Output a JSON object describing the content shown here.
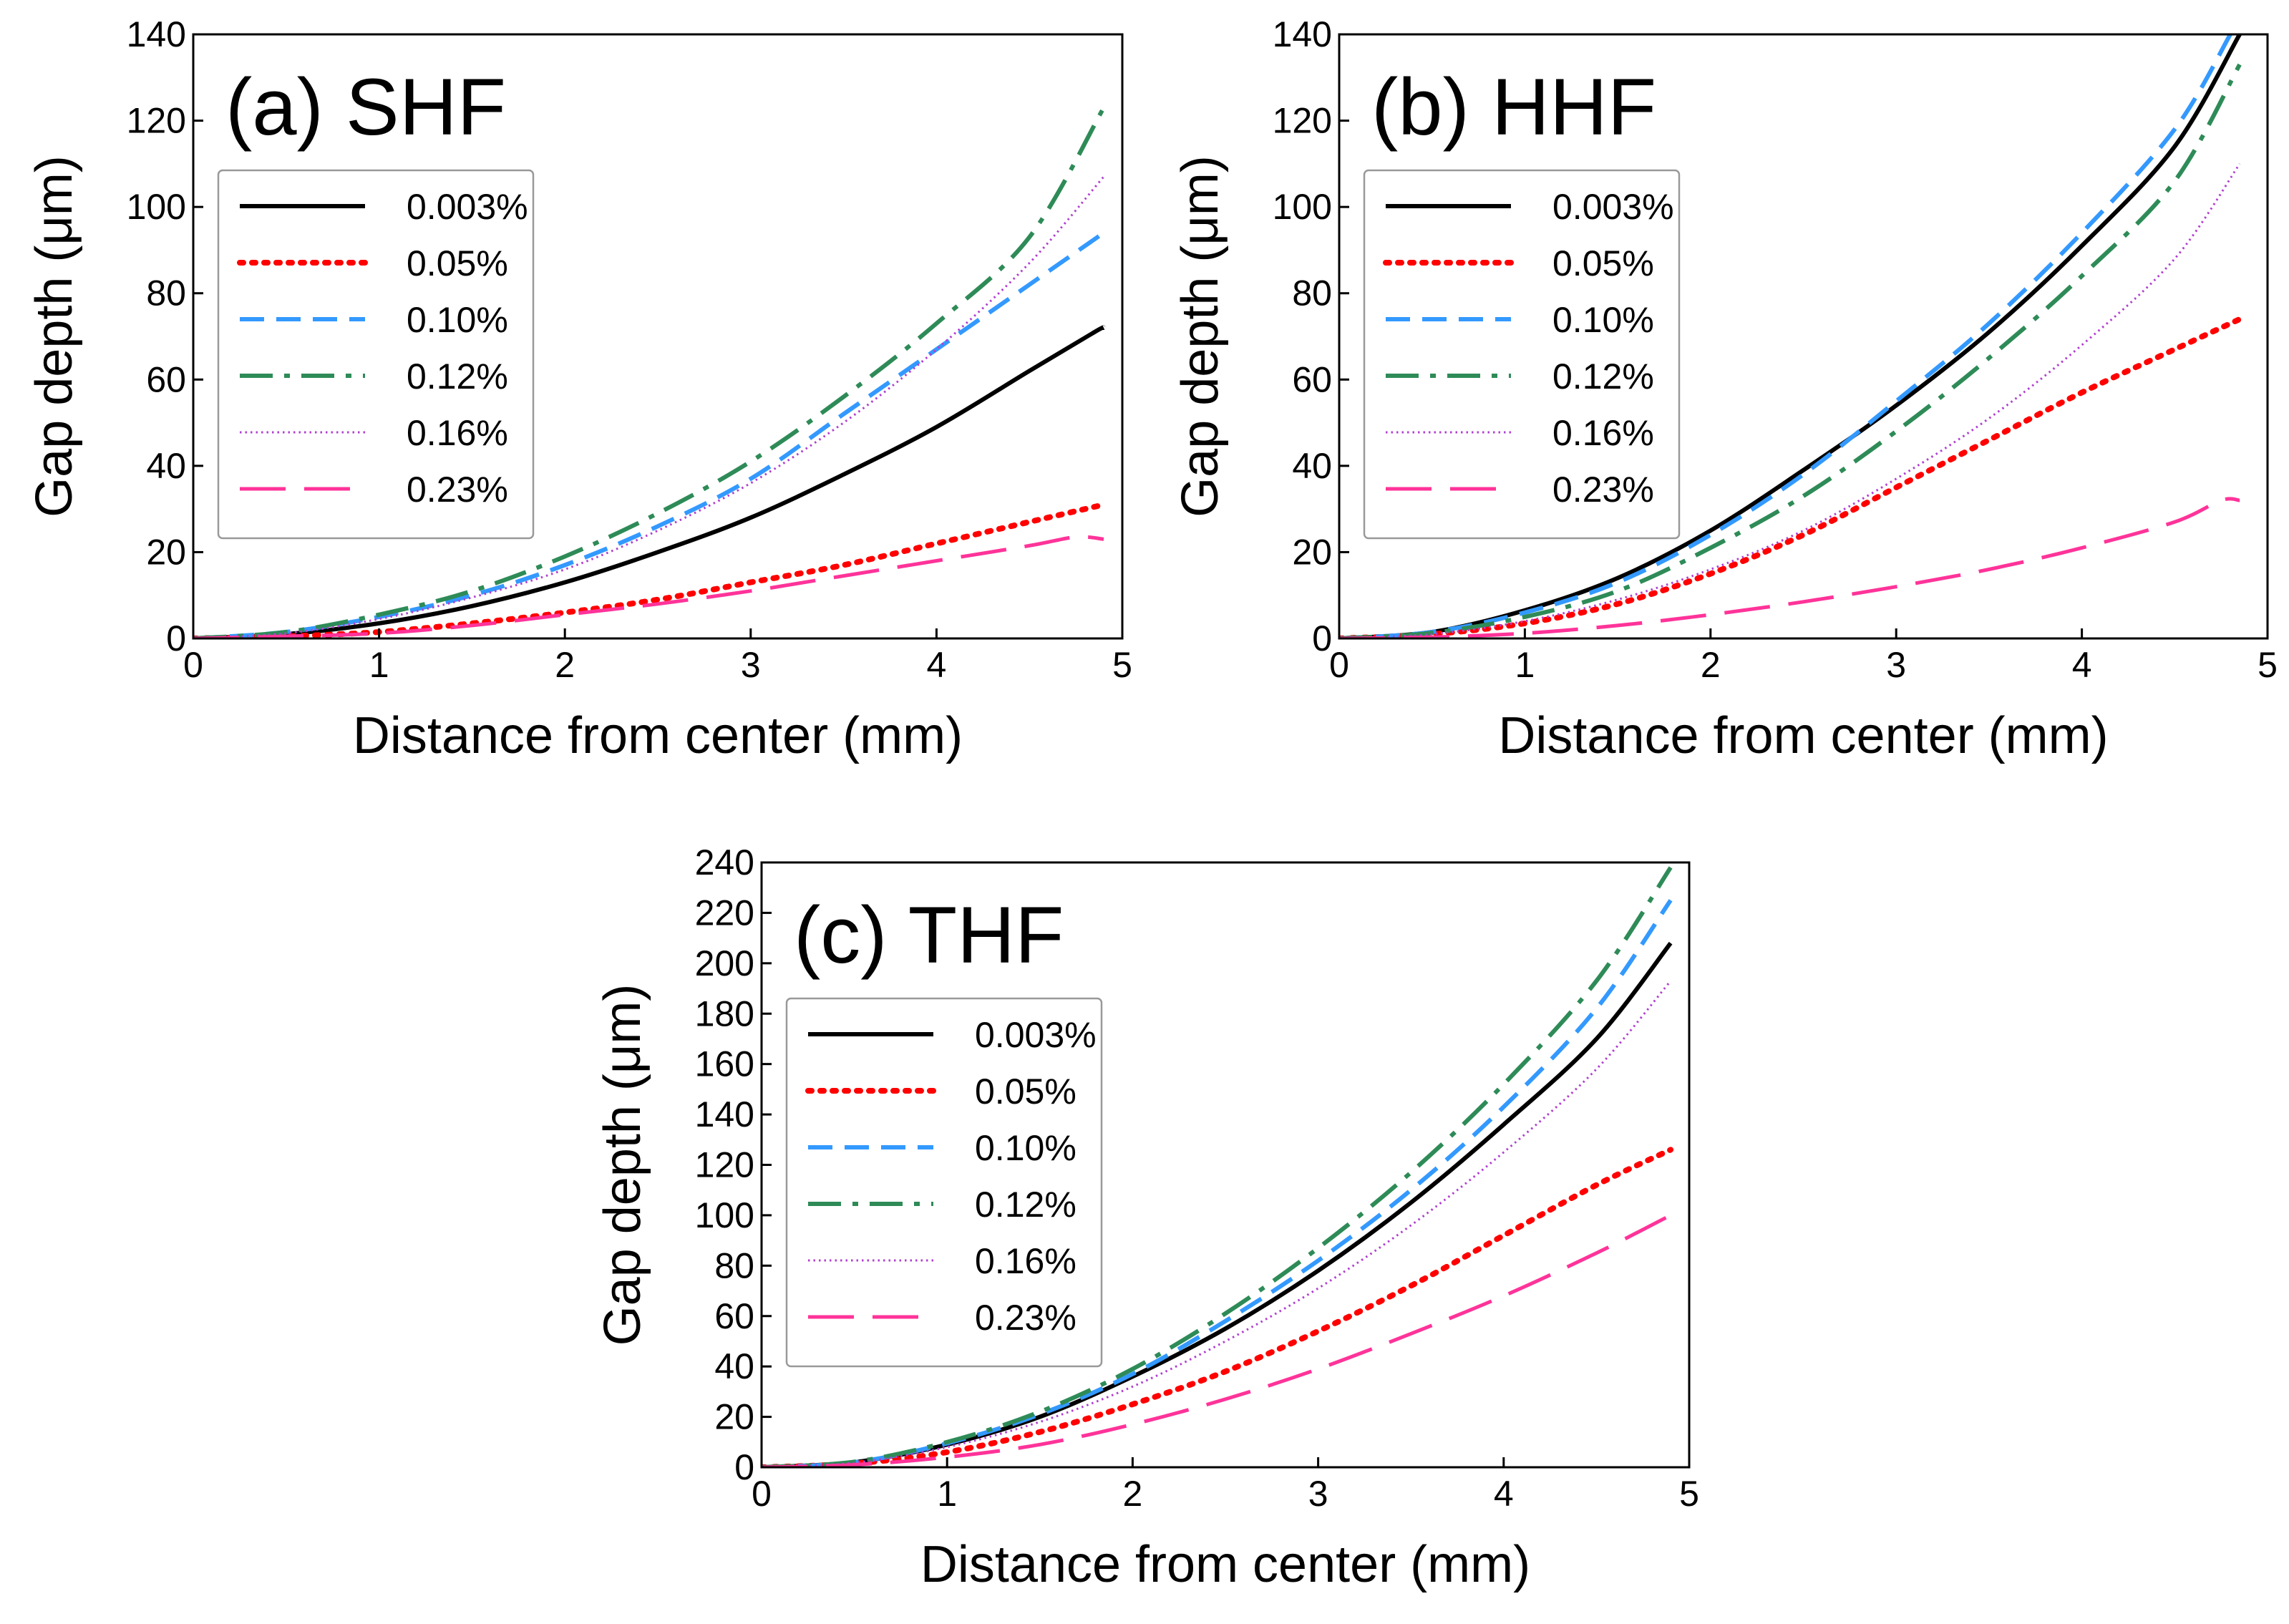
{
  "chart_data": [
    {
      "type": "line",
      "panel": "a",
      "title": "(a) SHF",
      "xlabel": "Distance from center (mm)",
      "ylabel": "Gap depth (μm)",
      "xlim": [
        0,
        5
      ],
      "ylim": [
        0,
        140
      ],
      "xticks": [
        "0",
        "1",
        "2",
        "3",
        "4",
        "5"
      ],
      "yticks": [
        "0",
        "20",
        "40",
        "60",
        "80",
        "100",
        "120",
        "140"
      ],
      "legend_position": "upper-left",
      "series": [
        {
          "name": "0.003%",
          "color": "#000000",
          "style": "solid",
          "x": [
            0,
            0.5,
            1,
            1.5,
            2,
            2.5,
            3,
            3.5,
            4,
            4.5,
            4.85,
            4.9
          ],
          "y": [
            0,
            1,
            3.5,
            7.5,
            13,
            20,
            28,
            38,
            49,
            62,
            71,
            72
          ]
        },
        {
          "name": "0.05%",
          "color": "#ff0000",
          "style": "dotted",
          "x": [
            0,
            0.5,
            1,
            1.5,
            2,
            2.5,
            3,
            3.5,
            4,
            4.5,
            4.9
          ],
          "y": [
            0,
            0.5,
            1.5,
            3.5,
            6,
            9,
            13,
            17,
            22,
            27,
            31
          ]
        },
        {
          "name": "0.10%",
          "color": "#3399ff",
          "style": "dashed",
          "x": [
            0,
            0.5,
            1,
            1.5,
            2,
            2.5,
            3,
            3.5,
            4,
            4.5,
            4.9
          ],
          "y": [
            0,
            1.5,
            5,
            10,
            17,
            26,
            37,
            52,
            67,
            82,
            94
          ]
        },
        {
          "name": "0.12%",
          "color": "#2e8b57",
          "style": "dashdot",
          "x": [
            0,
            0.5,
            1,
            1.5,
            2,
            2.5,
            3,
            3.5,
            4,
            4.5,
            4.9
          ],
          "y": [
            0,
            1.5,
            5.5,
            11,
            19,
            29,
            41,
            56,
            73,
            93,
            123
          ]
        },
        {
          "name": "0.16%",
          "color": "#b040d0",
          "style": "finedot",
          "x": [
            0,
            0.5,
            1,
            1.5,
            2,
            2.5,
            3,
            3.5,
            4,
            4.5,
            4.9
          ],
          "y": [
            0,
            1.2,
            4.5,
            9.5,
            16,
            25,
            36,
            50,
            67,
            87,
            107
          ]
        },
        {
          "name": "0.23%",
          "color": "#ff3399",
          "style": "longdash",
          "x": [
            0,
            0.5,
            1,
            1.5,
            2,
            2.5,
            3,
            3.5,
            4,
            4.5,
            4.75,
            4.9
          ],
          "y": [
            0,
            0.5,
            1.2,
            3,
            5.5,
            8,
            11,
            14.5,
            18,
            21.5,
            23.5,
            23
          ]
        }
      ]
    },
    {
      "type": "line",
      "panel": "b",
      "title": "(b) HHF",
      "xlabel": "Distance from center (mm)",
      "ylabel": "Gap depth (μm)",
      "xlim": [
        0,
        5
      ],
      "ylim": [
        0,
        140
      ],
      "xticks": [
        "0",
        "1",
        "2",
        "3",
        "4",
        "5"
      ],
      "yticks": [
        "0",
        "20",
        "40",
        "60",
        "80",
        "100",
        "120",
        "140"
      ],
      "legend_position": "upper-left",
      "series": [
        {
          "name": "0.003%",
          "color": "#000000",
          "style": "solid",
          "x": [
            0,
            0.5,
            1,
            1.5,
            2,
            2.5,
            3,
            3.5,
            4,
            4.5,
            4.85
          ],
          "y": [
            0,
            1.5,
            6.5,
            14,
            25,
            39,
            54,
            71,
            91,
            114,
            140
          ]
        },
        {
          "name": "0.05%",
          "color": "#ff0000",
          "style": "dotted",
          "x": [
            0,
            0.5,
            1,
            1.5,
            2,
            2.5,
            3,
            3.5,
            4,
            4.5,
            4.85
          ],
          "y": [
            0,
            1,
            3.5,
            8,
            15,
            24,
            35,
            46,
            57,
            67,
            74
          ]
        },
        {
          "name": "0.10%",
          "color": "#3399ff",
          "style": "dashed",
          "x": [
            0,
            0.5,
            1,
            1.5,
            2,
            2.5,
            3,
            3.5,
            4,
            4.5,
            4.8
          ],
          "y": [
            0,
            1.5,
            6,
            13,
            24,
            38,
            55,
            73,
            94,
            118,
            140
          ]
        },
        {
          "name": "0.12%",
          "color": "#2e8b57",
          "style": "dashdot",
          "x": [
            0,
            0.5,
            1,
            1.5,
            2,
            2.5,
            3,
            3.5,
            4,
            4.5,
            4.85
          ],
          "y": [
            0,
            1.3,
            5,
            11,
            21,
            33,
            48,
            65,
            84,
            106,
            133
          ]
        },
        {
          "name": "0.16%",
          "color": "#b040d0",
          "style": "finedot",
          "x": [
            0,
            0.5,
            1,
            1.5,
            2,
            2.5,
            3,
            3.5,
            4,
            4.5,
            4.85
          ],
          "y": [
            0,
            1,
            4,
            9,
            16,
            25,
            37,
            51,
            68,
            88,
            110
          ]
        },
        {
          "name": "0.23%",
          "color": "#ff3399",
          "style": "longdash",
          "x": [
            0,
            0.5,
            1,
            1.5,
            2,
            2.5,
            3,
            3.5,
            4,
            4.5,
            4.75,
            4.85
          ],
          "y": [
            0,
            0.3,
            1.2,
            3,
            5.5,
            8.5,
            12,
            16,
            21,
            27,
            32,
            32
          ]
        }
      ]
    },
    {
      "type": "line",
      "panel": "c",
      "title": "(c) THF",
      "xlabel": "Distance from center (mm)",
      "ylabel": "Gap depth (μm)",
      "xlim": [
        0,
        5
      ],
      "ylim": [
        0,
        240
      ],
      "xticks": [
        "0",
        "1",
        "2",
        "3",
        "4",
        "5"
      ],
      "yticks": [
        "0",
        "20",
        "40",
        "60",
        "80",
        "100",
        "120",
        "140",
        "160",
        "180",
        "200",
        "220",
        "240"
      ],
      "legend_position": "upper-left",
      "series": [
        {
          "name": "0.003%",
          "color": "#000000",
          "style": "solid",
          "x": [
            0,
            0.5,
            1,
            1.5,
            2,
            2.5,
            3,
            3.5,
            4,
            4.5,
            4.9
          ],
          "y": [
            0,
            2,
            9,
            20,
            36,
            55,
            78,
            105,
            136,
            170,
            208
          ]
        },
        {
          "name": "0.05%",
          "color": "#ff0000",
          "style": "dotted",
          "x": [
            0,
            0.5,
            1,
            1.5,
            2,
            2.5,
            3,
            3.5,
            4,
            4.5,
            4.9
          ],
          "y": [
            0,
            1.5,
            6,
            14,
            25,
            38,
            54,
            72,
            92,
            112,
            126
          ]
        },
        {
          "name": "0.10%",
          "color": "#3399ff",
          "style": "dashed",
          "x": [
            0,
            0.5,
            1,
            1.5,
            2,
            2.5,
            3,
            3.5,
            4,
            4.5,
            4.9
          ],
          "y": [
            0,
            2,
            9.5,
            21,
            37,
            58,
            82,
            110,
            143,
            182,
            225
          ]
        },
        {
          "name": "0.12%",
          "color": "#2e8b57",
          "style": "dashdot",
          "x": [
            0,
            0.5,
            1,
            1.5,
            2,
            2.5,
            3,
            3.5,
            4,
            4.5,
            4.9
          ],
          "y": [
            0,
            2.2,
            10,
            22,
            39,
            61,
            87,
            117,
            152,
            193,
            238
          ]
        },
        {
          "name": "0.16%",
          "color": "#b040d0",
          "style": "finedot",
          "x": [
            0,
            0.5,
            1,
            1.5,
            2,
            2.5,
            3,
            3.5,
            4,
            4.5,
            4.9
          ],
          "y": [
            0,
            1.8,
            8,
            18,
            32,
            50,
            71,
            96,
            125,
            158,
            193
          ]
        },
        {
          "name": "0.23%",
          "color": "#ff3399",
          "style": "longdash",
          "x": [
            0,
            0.5,
            1,
            1.5,
            2,
            2.5,
            3,
            3.5,
            4,
            4.5,
            4.9
          ],
          "y": [
            0,
            1,
            4,
            9,
            17,
            27,
            39,
            53,
            68,
            85,
            100
          ]
        }
      ]
    }
  ]
}
